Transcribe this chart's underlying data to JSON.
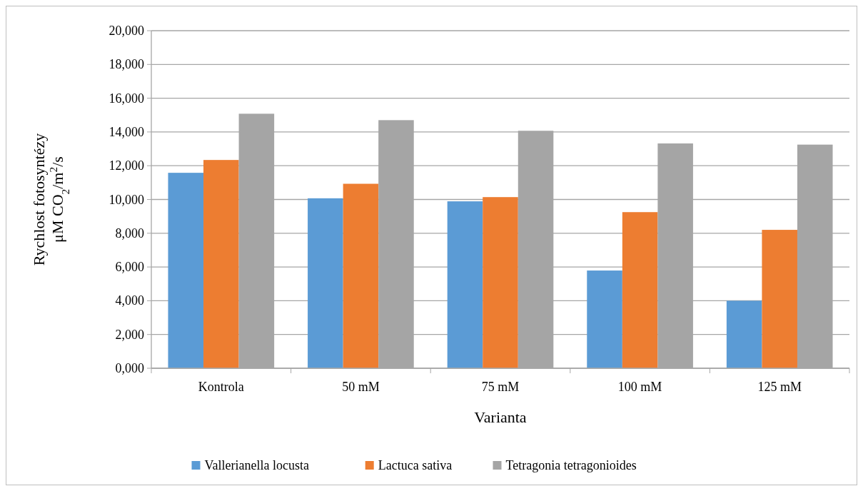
{
  "chart_data": {
    "type": "bar",
    "xlabel": "Varianta",
    "ylabel": "Rychlost fotosyntézy\nμM CO$_{2}$/m$^{2}$/s",
    "categories": [
      "Kontrola",
      "50 mM",
      "75 mM",
      "100 mM",
      "125 mM"
    ],
    "series": [
      {
        "name": "Vallerianella locusta",
        "color": "#5b9bd5",
        "values": [
          11580,
          10070,
          9890,
          5790,
          4000
        ]
      },
      {
        "name": "Lactuca sativa",
        "color": "#ed7d31",
        "values": [
          12340,
          10930,
          10140,
          9250,
          8200
        ]
      },
      {
        "name": "Tetragonia tetragonioides",
        "color": "#a5a5a5",
        "values": [
          15080,
          14700,
          14070,
          13320,
          13250
        ]
      }
    ],
    "ylim": [
      0,
      20000
    ],
    "yticks": [
      {
        "value": 0,
        "label": "0,000"
      },
      {
        "value": 2000,
        "label": "2,000"
      },
      {
        "value": 4000,
        "label": "4,000"
      },
      {
        "value": 6000,
        "label": "6,000"
      },
      {
        "value": 8000,
        "label": "8,000"
      },
      {
        "value": 10000,
        "label": "10,000"
      },
      {
        "value": 12000,
        "label": "12,000"
      },
      {
        "value": 14000,
        "label": "14,000"
      },
      {
        "value": 16000,
        "label": "16,000"
      },
      {
        "value": 18000,
        "label": "18,000"
      },
      {
        "value": 20000,
        "label": "20,000"
      }
    ],
    "grid": "y",
    "legend": "bottom"
  }
}
